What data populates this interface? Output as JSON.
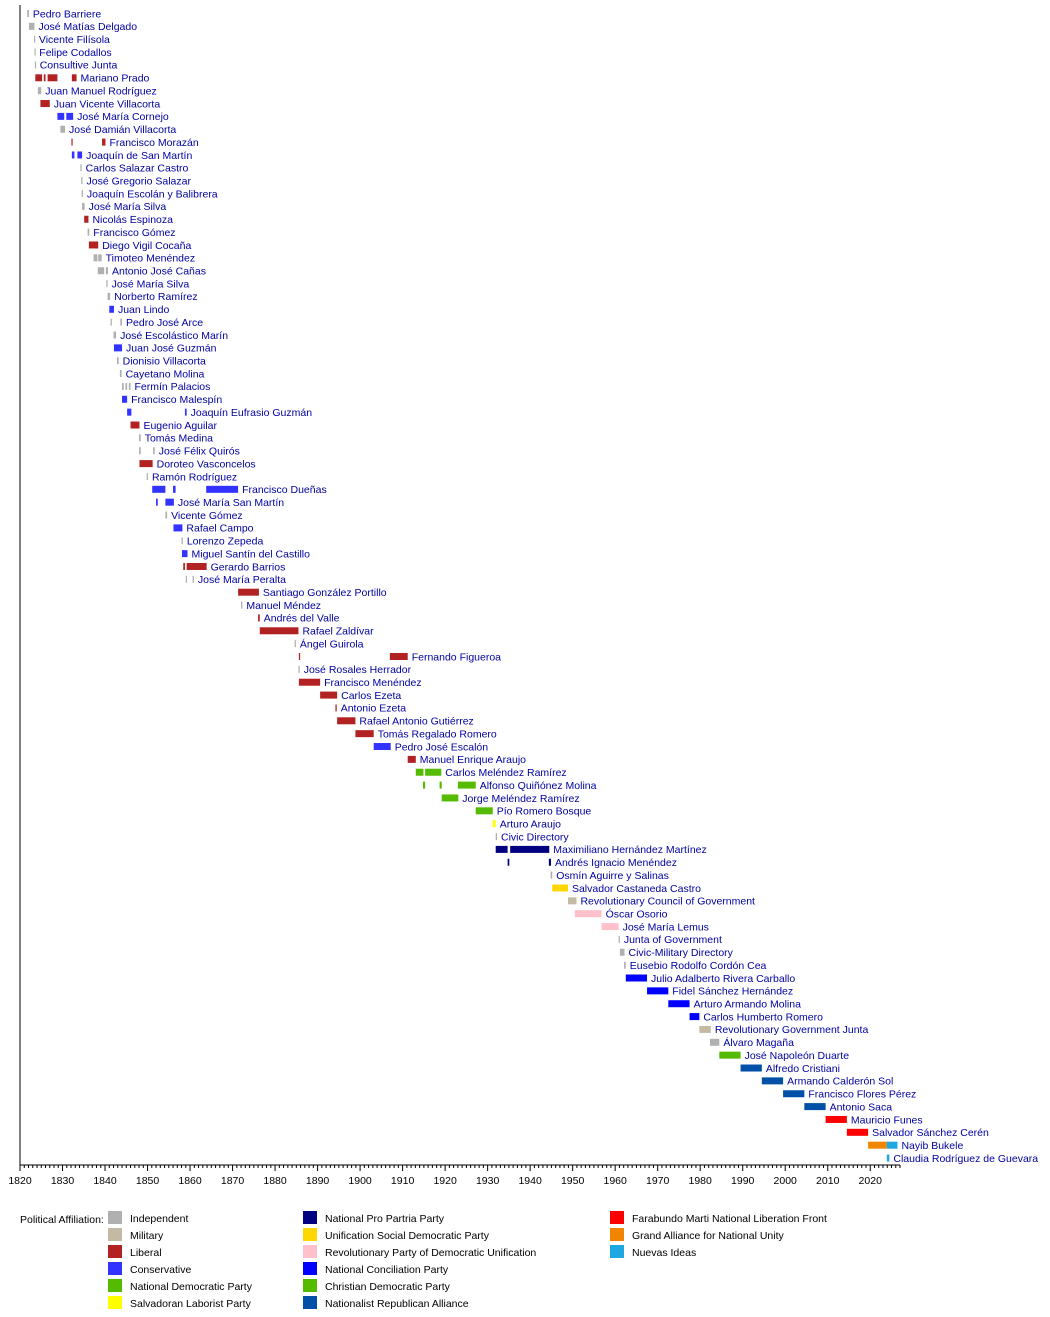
{
  "chart_data": {
    "type": "timeline",
    "xlim": [
      1820,
      2027
    ],
    "x_ticks": [
      1820,
      1830,
      1840,
      1850,
      1860,
      1870,
      1880,
      1890,
      1900,
      1910,
      1920,
      1930,
      1940,
      1950,
      1960,
      1970,
      1980,
      1990,
      2000,
      2010,
      2020
    ],
    "parties": [
      {
        "name": "Independent",
        "color": "#b0b0b0"
      },
      {
        "name": "Military",
        "color": "#c4b9a2"
      },
      {
        "name": "Liberal",
        "color": "#b22222"
      },
      {
        "name": "Conservative",
        "color": "#3333ff"
      },
      {
        "name": "National Democratic Party",
        "color": "#55bb00"
      },
      {
        "name": "Salvadoran Laborist Party",
        "color": "#ffff00"
      },
      {
        "name": "National Pro Partria Party",
        "color": "#000080"
      },
      {
        "name": "Unification Social Democratic Party",
        "color": "#ffd700"
      },
      {
        "name": "Revolutionary Party of Democratic Unification",
        "color": "#ffc0cb"
      },
      {
        "name": "National Conciliation Party",
        "color": "#0000ff"
      },
      {
        "name": "Christian Democratic Party",
        "color": "#55bb00"
      },
      {
        "name": "Nationalist Republican Alliance",
        "color": "#0050a8"
      },
      {
        "name": "Farabundo Marti National Liberation Front",
        "color": "#ff0000"
      },
      {
        "name": "Grand Alliance for National Unity",
        "color": "#f28500"
      },
      {
        "name": "Nuevas Ideas",
        "color": "#1ea7e1"
      }
    ],
    "legend_title": "Political Affiliation:",
    "presidents": [
      {
        "name": "Pedro Barriere",
        "party": 0,
        "terms": [
          [
            1821.7,
            1822.1
          ]
        ]
      },
      {
        "name": "José Matías Delgado",
        "party": 0,
        "terms": [
          [
            1822.1,
            1823.4
          ]
        ]
      },
      {
        "name": "Vicente Filísola",
        "party": 0,
        "terms": [
          [
            1823.3,
            1823.5
          ]
        ]
      },
      {
        "name": "Felipe Codallos",
        "party": 0,
        "terms": [
          [
            1823.4,
            1823.6
          ]
        ]
      },
      {
        "name": "Consultive Junta",
        "party": 0,
        "terms": [
          [
            1823.5,
            1823.7
          ]
        ]
      },
      {
        "name": "Mariano Prado",
        "party": 2,
        "terms": [
          [
            1823.6,
            1825.2
          ],
          [
            1825.6,
            1826.0
          ],
          [
            1826.5,
            1828.8
          ],
          [
            1832.2,
            1833.3
          ]
        ]
      },
      {
        "name": "Juan Manuel Rodríguez",
        "party": 0,
        "terms": [
          [
            1824.2,
            1825.0
          ]
        ]
      },
      {
        "name": "Juan Vicente Villacorta",
        "party": 2,
        "terms": [
          [
            1824.8,
            1827.0
          ]
        ]
      },
      {
        "name": "José María Cornejo",
        "party": 3,
        "terms": [
          [
            1828.8,
            1830.4
          ],
          [
            1830.9,
            1832.5
          ]
        ]
      },
      {
        "name": "José Damián Villacorta",
        "party": 0,
        "terms": [
          [
            1829.5,
            1830.6
          ]
        ]
      },
      {
        "name": "Francisco Morazán",
        "party": 2,
        "terms": [
          [
            1832.1,
            1832.3
          ],
          [
            1839.3,
            1840.1
          ]
        ]
      },
      {
        "name": "Joaquín de San Martín",
        "party": 3,
        "terms": [
          [
            1832.2,
            1832.8
          ],
          [
            1833.5,
            1834.6
          ]
        ]
      },
      {
        "name": "Carlos Salazar Castro",
        "party": 0,
        "terms": [
          [
            1834.2,
            1834.5
          ]
        ]
      },
      {
        "name": "José Gregorio Salazar",
        "party": 0,
        "terms": [
          [
            1834.4,
            1834.7
          ]
        ]
      },
      {
        "name": "Joaquín Escolán y Balibrera",
        "party": 0,
        "terms": [
          [
            1834.5,
            1834.8
          ]
        ]
      },
      {
        "name": "José María Silva",
        "party": 0,
        "terms": [
          [
            1834.6,
            1835.2
          ]
        ]
      },
      {
        "name": "Nicolás Espinoza",
        "party": 2,
        "terms": [
          [
            1835.1,
            1836.1
          ]
        ]
      },
      {
        "name": "Francisco Gómez",
        "party": 0,
        "terms": [
          [
            1835.9,
            1836.3
          ]
        ]
      },
      {
        "name": "Diego Vigil Cocaña",
        "party": 2,
        "terms": [
          [
            1836.2,
            1838.4
          ]
        ]
      },
      {
        "name": "Timoteo Menéndez",
        "party": 0,
        "terms": [
          [
            1837.3,
            1838.2
          ],
          [
            1838.4,
            1839.2
          ]
        ]
      },
      {
        "name": "Antonio José Cañas",
        "party": 0,
        "terms": [
          [
            1838.3,
            1839.8
          ],
          [
            1840.2,
            1840.7
          ]
        ]
      },
      {
        "name": "José María Silva",
        "party": 0,
        "terms": [
          [
            1840.3,
            1840.6
          ]
        ]
      },
      {
        "name": "Norberto Ramírez",
        "party": 0,
        "terms": [
          [
            1840.6,
            1841.2
          ]
        ]
      },
      {
        "name": "Juan Lindo",
        "party": 3,
        "terms": [
          [
            1841.0,
            1842.1
          ]
        ]
      },
      {
        "name": "Pedro José Arce",
        "party": 0,
        "terms": [
          [
            1841.3,
            1841.6
          ],
          [
            1843.6,
            1844.0
          ]
        ]
      },
      {
        "name": "José Escolástico Marín",
        "party": 0,
        "terms": [
          [
            1842.0,
            1842.6
          ]
        ]
      },
      {
        "name": "Juan José Guzmán",
        "party": 3,
        "terms": [
          [
            1842.1,
            1844.0
          ]
        ]
      },
      {
        "name": "Dionisio Villacorta",
        "party": 0,
        "terms": [
          [
            1842.8,
            1843.2
          ]
        ]
      },
      {
        "name": "Cayetano Molina",
        "party": 0,
        "terms": [
          [
            1843.5,
            1843.9
          ]
        ]
      },
      {
        "name": "Fermín Palacios",
        "party": 0,
        "terms": [
          [
            1844.0,
            1844.4
          ],
          [
            1844.8,
            1845.2
          ],
          [
            1845.6,
            1846.0
          ]
        ]
      },
      {
        "name": "Francisco Malespín",
        "party": 3,
        "terms": [
          [
            1844.0,
            1845.2
          ]
        ]
      },
      {
        "name": "Joaquín Eufrasio Guzmán",
        "party": 3,
        "terms": [
          [
            1845.2,
            1846.2
          ],
          [
            1858.8,
            1859.2
          ]
        ]
      },
      {
        "name": "Eugenio Aguilar",
        "party": 2,
        "terms": [
          [
            1846.0,
            1848.1
          ]
        ]
      },
      {
        "name": "Tomás Medina",
        "party": 0,
        "terms": [
          [
            1848.0,
            1848.4
          ]
        ]
      },
      {
        "name": "José Félix Quirós",
        "party": 0,
        "terms": [
          [
            1848.0,
            1848.4
          ],
          [
            1851.3,
            1851.7
          ]
        ]
      },
      {
        "name": "Doroteo Vasconcelos",
        "party": 2,
        "terms": [
          [
            1848.1,
            1851.2
          ]
        ]
      },
      {
        "name": "Ramón Rodríguez",
        "party": 0,
        "terms": [
          [
            1849.8,
            1850.1
          ]
        ]
      },
      {
        "name": "Francisco Dueñas",
        "party": 3,
        "terms": [
          [
            1851.1,
            1854.2
          ],
          [
            1856.0,
            1856.6
          ],
          [
            1863.8,
            1871.3
          ]
        ]
      },
      {
        "name": "José María San Martín",
        "party": 3,
        "terms": [
          [
            1852.0,
            1852.4
          ],
          [
            1854.2,
            1856.2
          ]
        ]
      },
      {
        "name": "Vicente Gómez",
        "party": 0,
        "terms": [
          [
            1854.2,
            1854.6
          ]
        ]
      },
      {
        "name": "Rafael Campo",
        "party": 3,
        "terms": [
          [
            1856.1,
            1858.2
          ]
        ]
      },
      {
        "name": "Lorenzo Zepeda",
        "party": 0,
        "terms": [
          [
            1858.0,
            1858.3
          ]
        ]
      },
      {
        "name": "Miguel Santín del Castillo",
        "party": 3,
        "terms": [
          [
            1858.1,
            1859.4
          ]
        ]
      },
      {
        "name": "Gerardo Barrios",
        "party": 2,
        "terms": [
          [
            1858.4,
            1858.8
          ],
          [
            1859.2,
            1863.9
          ]
        ]
      },
      {
        "name": "José María Peralta",
        "party": 0,
        "terms": [
          [
            1859.0,
            1859.2
          ],
          [
            1860.6,
            1860.9
          ]
        ]
      },
      {
        "name": "Santiago González Portillo",
        "party": 2,
        "terms": [
          [
            1871.3,
            1876.2
          ]
        ]
      },
      {
        "name": "Manuel Méndez",
        "party": 0,
        "terms": [
          [
            1872.0,
            1872.3
          ]
        ]
      },
      {
        "name": "Andrés del Valle",
        "party": 2,
        "terms": [
          [
            1876.0,
            1876.4
          ]
        ]
      },
      {
        "name": "Rafael Zaldívar",
        "party": 2,
        "terms": [
          [
            1876.4,
            1885.5
          ]
        ]
      },
      {
        "name": "Ángel Guirola",
        "party": 0,
        "terms": [
          [
            1884.6,
            1884.9
          ]
        ]
      },
      {
        "name": "Fernando Figueroa",
        "party": 2,
        "terms": [
          [
            1885.6,
            1885.9
          ],
          [
            1907.0,
            1911.2
          ]
        ]
      },
      {
        "name": "José Rosales Herrador",
        "party": 0,
        "terms": [
          [
            1885.5,
            1885.8
          ]
        ]
      },
      {
        "name": "Francisco Menéndez",
        "party": 2,
        "terms": [
          [
            1885.6,
            1890.6
          ]
        ]
      },
      {
        "name": "Carlos Ezeta",
        "party": 2,
        "terms": [
          [
            1890.6,
            1894.6
          ]
        ]
      },
      {
        "name": "Antonio Ezeta",
        "party": 2,
        "terms": [
          [
            1894.2,
            1894.5
          ]
        ]
      },
      {
        "name": "Rafael Antonio Gutiérrez",
        "party": 2,
        "terms": [
          [
            1894.6,
            1898.9
          ]
        ]
      },
      {
        "name": "Tomás Regalado Romero",
        "party": 2,
        "terms": [
          [
            1898.9,
            1903.2
          ]
        ]
      },
      {
        "name": "Pedro José Escalón",
        "party": 3,
        "terms": [
          [
            1903.2,
            1907.2
          ]
        ]
      },
      {
        "name": "Manuel Enrique Araujo",
        "party": 2,
        "terms": [
          [
            1911.2,
            1913.1
          ]
        ]
      },
      {
        "name": "Carlos Meléndez Ramírez",
        "party": 4,
        "terms": [
          [
            1913.1,
            1914.9
          ],
          [
            1915.3,
            1919.1
          ]
        ]
      },
      {
        "name": "Alfonso Quiñónez Molina",
        "party": 4,
        "terms": [
          [
            1914.8,
            1915.3
          ],
          [
            1918.7,
            1919.2
          ],
          [
            1923.0,
            1927.2
          ]
        ]
      },
      {
        "name": "Jorge Meléndez Ramírez",
        "party": 4,
        "terms": [
          [
            1919.2,
            1923.1
          ]
        ]
      },
      {
        "name": "Pío Romero Bosque",
        "party": 4,
        "terms": [
          [
            1927.2,
            1931.2
          ]
        ]
      },
      {
        "name": "Arturo Araujo",
        "party": 5,
        "terms": [
          [
            1931.2,
            1931.9
          ]
        ]
      },
      {
        "name": "Civic Directory",
        "party": 0,
        "terms": [
          [
            1931.9,
            1932.2
          ]
        ]
      },
      {
        "name": "Maximiliano Hernández Martínez",
        "party": 6,
        "terms": [
          [
            1931.9,
            1934.7
          ],
          [
            1935.3,
            1944.5
          ]
        ]
      },
      {
        "name": "Andrés Ignacio Menéndez",
        "party": 6,
        "terms": [
          [
            1934.7,
            1935.1
          ],
          [
            1944.4,
            1944.9
          ]
        ]
      },
      {
        "name": "Osmín Aguirre y Salinas",
        "party": 0,
        "terms": [
          [
            1944.8,
            1945.2
          ]
        ]
      },
      {
        "name": "Salvador Castaneda Castro",
        "party": 7,
        "terms": [
          [
            1945.2,
            1948.9
          ]
        ]
      },
      {
        "name": "Revolutionary Council of Government",
        "party": 1,
        "terms": [
          [
            1948.9,
            1950.9
          ]
        ]
      },
      {
        "name": "Óscar Osorio",
        "party": 8,
        "terms": [
          [
            1950.5,
            1956.8
          ]
        ]
      },
      {
        "name": "José María Lemus",
        "party": 8,
        "terms": [
          [
            1956.8,
            1960.8
          ]
        ]
      },
      {
        "name": "Junta of Government",
        "party": 0,
        "terms": [
          [
            1960.8,
            1961.1
          ]
        ]
      },
      {
        "name": "Civic-Military Directory",
        "party": 0,
        "terms": [
          [
            1961.1,
            1962.2
          ]
        ]
      },
      {
        "name": "Eusebio Rodolfo Cordón Cea",
        "party": 0,
        "terms": [
          [
            1962.1,
            1962.5
          ]
        ]
      },
      {
        "name": "Julio Adalberto Rivera Carballo",
        "party": 9,
        "terms": [
          [
            1962.5,
            1967.5
          ]
        ]
      },
      {
        "name": "Fidel Sánchez Hernández",
        "party": 9,
        "terms": [
          [
            1967.5,
            1972.5
          ]
        ]
      },
      {
        "name": "Arturo Armando Molina",
        "party": 9,
        "terms": [
          [
            1972.5,
            1977.5
          ]
        ]
      },
      {
        "name": "Carlos Humberto Romero",
        "party": 9,
        "terms": [
          [
            1977.5,
            1979.8
          ]
        ]
      },
      {
        "name": "Revolutionary Government Junta",
        "party": 1,
        "terms": [
          [
            1979.8,
            1982.5
          ]
        ]
      },
      {
        "name": "Álvaro Magaña",
        "party": 0,
        "terms": [
          [
            1982.3,
            1984.5
          ]
        ]
      },
      {
        "name": "José Napoleón Duarte",
        "party": 10,
        "terms": [
          [
            1984.5,
            1989.5
          ]
        ]
      },
      {
        "name": "Alfredo Cristiani",
        "party": 11,
        "terms": [
          [
            1989.5,
            1994.5
          ]
        ]
      },
      {
        "name": "Armando Calderón Sol",
        "party": 11,
        "terms": [
          [
            1994.5,
            1999.5
          ]
        ]
      },
      {
        "name": "Francisco Flores Pérez",
        "party": 11,
        "terms": [
          [
            1999.5,
            2004.5
          ]
        ]
      },
      {
        "name": "Antonio Saca",
        "party": 11,
        "terms": [
          [
            2004.5,
            2009.5
          ]
        ]
      },
      {
        "name": "Mauricio Funes",
        "party": 12,
        "terms": [
          [
            2009.5,
            2014.5
          ]
        ]
      },
      {
        "name": "Salvador Sánchez Cerén",
        "party": 12,
        "terms": [
          [
            2014.5,
            2019.5
          ]
        ]
      },
      {
        "name": "Nayib Bukele",
        "party": 13,
        "terms": [
          [
            2019.5,
            2023.9
          ]
        ],
        "extra_terms": [
          {
            "party": 14,
            "range": [
              2023.9,
              2026.4
            ]
          }
        ]
      },
      {
        "name": "Claudia Rodríguez de Guevara",
        "party": 14,
        "terms": [
          [
            2023.9,
            2024.5
          ]
        ]
      }
    ]
  }
}
